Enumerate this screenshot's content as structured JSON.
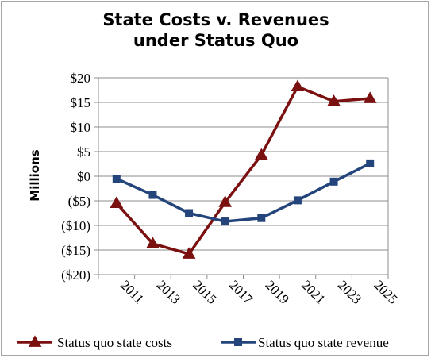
{
  "chart_data": {
    "type": "line",
    "title": [
      "State Costs v. Revenues",
      "under Status Quo"
    ],
    "ylabel": "Millions",
    "xlabel": "",
    "categories": [
      "2011",
      "2013",
      "2015",
      "2017",
      "2019",
      "2021",
      "2023",
      "2025"
    ],
    "y_tick_labels": [
      "$20",
      "$15",
      "$10",
      "$5",
      "$0",
      "($5)",
      "($10)",
      "($15)",
      "($20)"
    ],
    "y_tick_values": [
      20,
      15,
      10,
      5,
      0,
      -5,
      -10,
      -15,
      -20
    ],
    "ylim": [
      -20,
      20
    ],
    "grid": "horizontal",
    "legend_position": "bottom",
    "series": [
      {
        "name": "Status quo state costs",
        "marker": "triangle",
        "color": "#7b1010",
        "values": [
          -5.5,
          -13.7,
          -15.8,
          -5.3,
          4.3,
          18.2,
          15.2,
          15.8
        ]
      },
      {
        "name": "Status quo state revenue",
        "marker": "square",
        "color": "#24457c",
        "values": [
          -0.5,
          -3.8,
          -7.5,
          -9.2,
          -8.5,
          -4.9,
          -1.1,
          2.6
        ]
      }
    ]
  }
}
